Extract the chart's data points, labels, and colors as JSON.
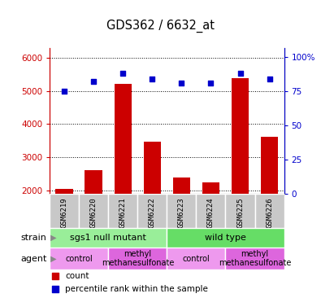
{
  "title": "GDS362 / 6632_at",
  "samples": [
    "GSM6219",
    "GSM6220",
    "GSM6221",
    "GSM6222",
    "GSM6223",
    "GSM6224",
    "GSM6225",
    "GSM6226"
  ],
  "counts": [
    2050,
    2600,
    5200,
    3480,
    2380,
    2250,
    5380,
    3620
  ],
  "percentiles": [
    75,
    82,
    88,
    84,
    81,
    81,
    88,
    84
  ],
  "ylim_left": [
    1900,
    6300
  ],
  "ylim_right": [
    0,
    107
  ],
  "yticks_left": [
    2000,
    3000,
    4000,
    5000,
    6000
  ],
  "yticks_right": [
    0,
    25,
    50,
    75,
    100
  ],
  "bar_color": "#cc0000",
  "dot_color": "#0000cc",
  "bar_width": 0.6,
  "strain_groups": [
    {
      "label": "sgs1 null mutant",
      "start": 0,
      "end": 4,
      "color": "#99ee99"
    },
    {
      "label": "wild type",
      "start": 4,
      "end": 8,
      "color": "#66dd66"
    }
  ],
  "agent_groups": [
    {
      "label": "control",
      "start": 0,
      "end": 2,
      "color": "#ee99ee"
    },
    {
      "label": "methyl\nmethanesulfonate",
      "start": 2,
      "end": 4,
      "color": "#dd66dd"
    },
    {
      "label": "control",
      "start": 4,
      "end": 6,
      "color": "#ee99ee"
    },
    {
      "label": "methyl\nmethanesulfonate",
      "start": 6,
      "end": 8,
      "color": "#dd66dd"
    }
  ],
  "bar_color_hex": "#cc0000",
  "dot_color_hex": "#0000cc",
  "tick_color_left": "#cc0000",
  "tick_color_right": "#0000cc",
  "bg_color": "#ffffff",
  "gray_box_color": "#c8c8c8"
}
